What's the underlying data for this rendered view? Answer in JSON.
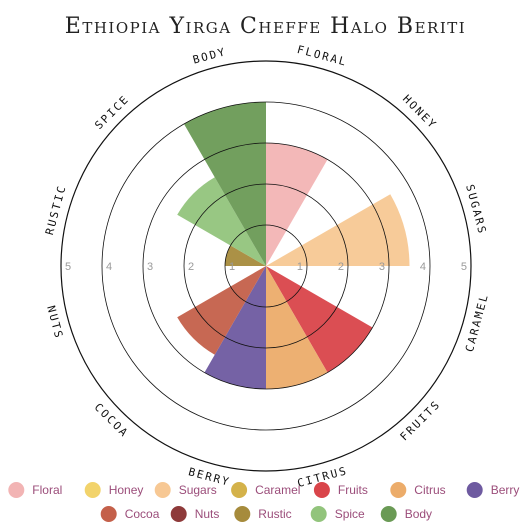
{
  "chart_data": {
    "type": "polar-area",
    "title": "Ethiopia Yirga Cheffe Halo Beriti",
    "rlim": [
      0,
      5
    ],
    "ticks": [
      "1",
      "2",
      "3",
      "4",
      "5"
    ],
    "categories": [
      {
        "label": "Floral",
        "ring_label": "FLORAL",
        "value": 3,
        "color": "#f2b4b4"
      },
      {
        "label": "Honey",
        "ring_label": "HONEY",
        "value": 0,
        "color": "#f2d36b"
      },
      {
        "label": "Sugars",
        "ring_label": "SUGARS",
        "value": 3.5,
        "color": "#f7c894"
      },
      {
        "label": "Caramel",
        "ring_label": "CARAMEL",
        "value": 0,
        "color": "#d4b24a"
      },
      {
        "label": "Fruits",
        "ring_label": "FRUITS",
        "value": 3,
        "color": "#d9454a"
      },
      {
        "label": "Citrus",
        "ring_label": "CITRUS",
        "value": 3,
        "color": "#ecac6a"
      },
      {
        "label": "Berry",
        "ring_label": "BERRY",
        "value": 3,
        "color": "#6e5aa0"
      },
      {
        "label": "Cocoa",
        "ring_label": "COCOA",
        "value": 2.5,
        "color": "#c4604a"
      },
      {
        "label": "Nuts",
        "ring_label": "NUTS",
        "value": 0,
        "color": "#8e3a3a"
      },
      {
        "label": "Rustic",
        "ring_label": "RUSTIC",
        "value": 1,
        "color": "#a68b3c"
      },
      {
        "label": "Spice",
        "ring_label": "SPICE",
        "value": 2.5,
        "color": "#92c47c"
      },
      {
        "label": "Body",
        "ring_label": "BODY",
        "value": 4,
        "color": "#6a9a55"
      }
    ],
    "legend_position": "bottom",
    "grid": true
  }
}
